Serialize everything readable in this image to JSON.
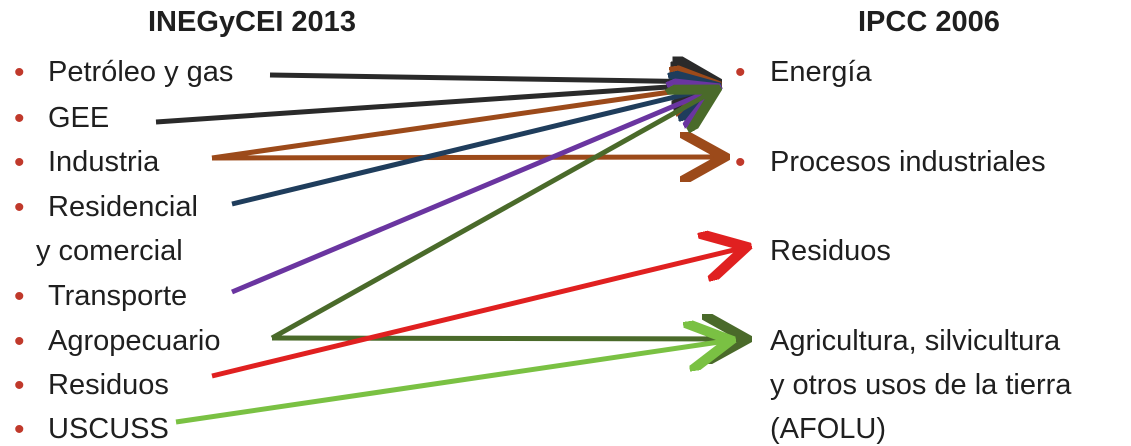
{
  "left": {
    "heading": "INEGyCEI 2013",
    "items": [
      {
        "label": "Petróleo y gas"
      },
      {
        "label": "GEE"
      },
      {
        "label": "Industria"
      },
      {
        "label": "Residencial",
        "label2": "y comercial"
      },
      {
        "label": "Transporte"
      },
      {
        "label": "Agropecuario"
      },
      {
        "label": "Residuos"
      },
      {
        "label": "USCUSS"
      }
    ]
  },
  "right": {
    "heading": "IPCC 2006",
    "items": [
      {
        "label": "Energía"
      },
      {
        "label": "Procesos industriales"
      },
      {
        "label": "Residuos"
      },
      {
        "label": "Agricultura, silvicultura",
        "label2": "y otros usos de la tierra",
        "label3": "(AFOLU)"
      }
    ]
  },
  "bullet_color": "#c0392b",
  "mappings": [
    {
      "from": "Petróleo y gas",
      "to": "Energía",
      "color": "#2a2a2a"
    },
    {
      "from": "GEE",
      "to": "Energía",
      "color": "#2a2a2a"
    },
    {
      "from": "Industria",
      "to": "Energía",
      "color": "#9c4a1a"
    },
    {
      "from": "Industria",
      "to": "Procesos industriales",
      "color": "#9c4a1a"
    },
    {
      "from": "Residencial y comercial",
      "to": "Energía",
      "color": "#1f3d5c"
    },
    {
      "from": "Transporte",
      "to": "Energía",
      "color": "#6a35a0"
    },
    {
      "from": "Agropecuario",
      "to": "Energía",
      "color": "#4a6a2a"
    },
    {
      "from": "Agropecuario",
      "to": "Agricultura, silvicultura y otros usos de la tierra (AFOLU)",
      "color": "#4a6a2a"
    },
    {
      "from": "Residuos",
      "to": "Residuos",
      "color": "#e02020"
    },
    {
      "from": "USCUSS",
      "to": "Agricultura, silvicultura y otros usos de la tierra (AFOLU)",
      "color": "#7ac143"
    }
  ]
}
